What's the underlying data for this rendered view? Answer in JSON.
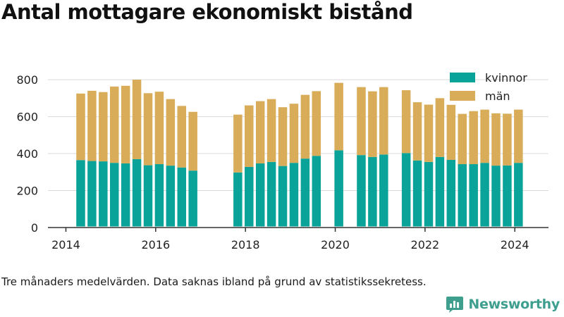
{
  "page": {
    "title": "Antal mottagare ekonomiskt bistånd",
    "caption": "Tre månaders medelvärden. Data saknas ibland på grund av statistikssekretess.",
    "brand": "Newsworthy",
    "brand_icon": "newsworthy-logo-icon"
  },
  "colors": {
    "kvinnor": "#0aa39a",
    "man": "#d9ac59",
    "grid": "#d9d9d9",
    "axis": "#333333",
    "brand": "#3f9f8f"
  },
  "chart_data": {
    "type": "bar",
    "stacked": true,
    "title": "Antal mottagare ekonomiskt bistånd",
    "xlabel": "",
    "ylabel": "",
    "ylim": [
      0,
      850
    ],
    "yticks": [
      0,
      200,
      400,
      600,
      800
    ],
    "xlim": [
      2013.6,
      2024.75
    ],
    "xticks": [
      2014,
      2016,
      2018,
      2020,
      2022,
      2024
    ],
    "grid": true,
    "legend": "top-right",
    "x": [
      2014.33,
      2014.58,
      2014.83,
      2015.08,
      2015.33,
      2015.58,
      2015.83,
      2016.08,
      2016.33,
      2016.58,
      2016.83,
      2017.83,
      2018.08,
      2018.33,
      2018.58,
      2018.83,
      2019.08,
      2019.33,
      2019.58,
      2020.08,
      2020.58,
      2020.83,
      2021.08,
      2021.58,
      2021.83,
      2022.08,
      2022.33,
      2022.58,
      2022.83,
      2023.08,
      2023.33,
      2023.58,
      2023.83,
      2024.08
    ],
    "series": [
      {
        "name": "kvinnor",
        "values": [
          365,
          360,
          358,
          350,
          347,
          370,
          337,
          343,
          335,
          325,
          308,
          298,
          328,
          347,
          355,
          333,
          350,
          373,
          388,
          418,
          392,
          382,
          395,
          403,
          363,
          355,
          382,
          366,
          343,
          343,
          350,
          335,
          336,
          350
        ]
      },
      {
        "name": "män",
        "values": [
          360,
          380,
          375,
          413,
          420,
          430,
          390,
          392,
          360,
          333,
          318,
          313,
          333,
          337,
          340,
          318,
          320,
          345,
          350,
          365,
          368,
          355,
          365,
          340,
          315,
          310,
          318,
          298,
          272,
          287,
          288,
          283,
          280,
          288
        ]
      }
    ]
  }
}
